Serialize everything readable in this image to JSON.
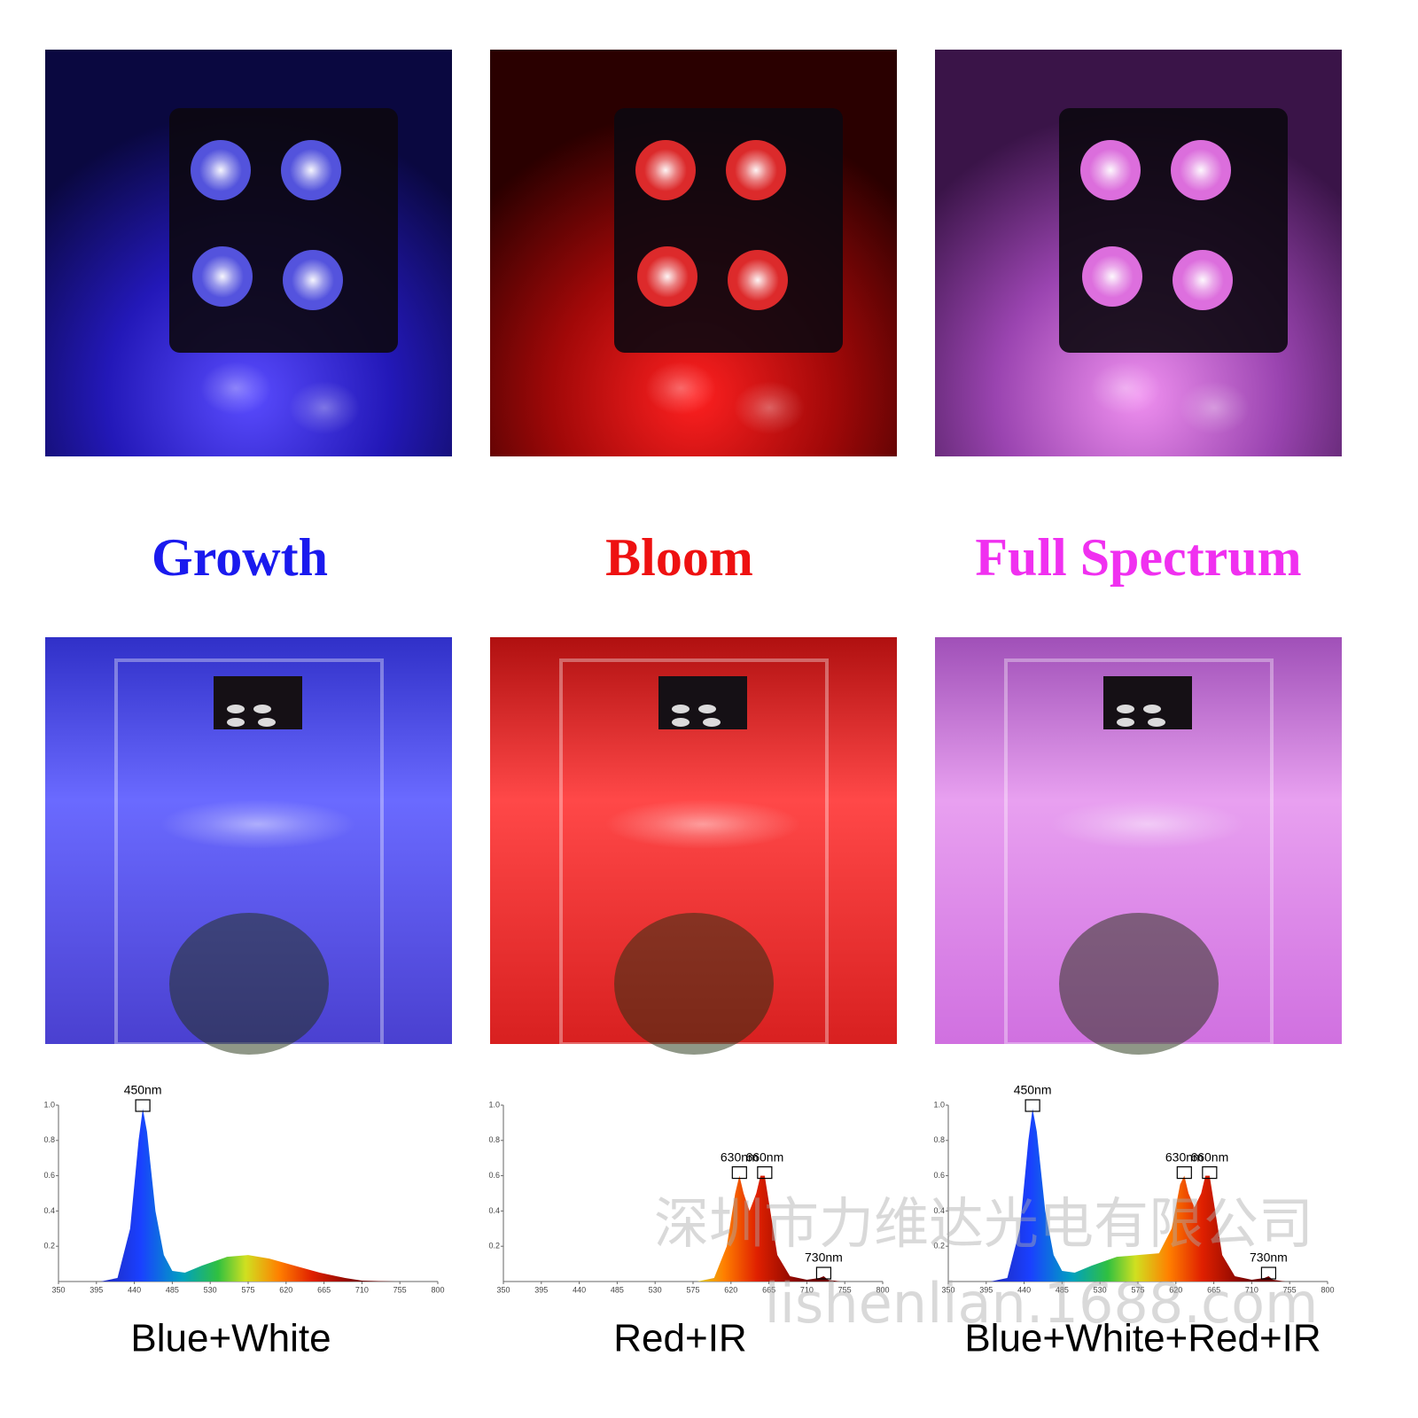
{
  "panels": [
    {
      "heading": "Growth",
      "heading_color": "#1a1aee",
      "caption": "Blue+White"
    },
    {
      "heading": "Bloom",
      "heading_color": "#ee1111",
      "caption": "Red+IR"
    },
    {
      "heading": "Full Spectrum",
      "heading_color": "#f030f0",
      "caption": "Blue+White+Red+IR"
    }
  ],
  "watermark": {
    "company": "深圳市力维达光电有限公司",
    "site": "lishenlian.1688.com"
  },
  "chart_data": [
    {
      "type": "area",
      "x": [
        350,
        400,
        420,
        435,
        445,
        450,
        455,
        465,
        475,
        485,
        500,
        520,
        550,
        575,
        600,
        630,
        660,
        690,
        710,
        750,
        800
      ],
      "values": [
        0,
        0,
        0.02,
        0.3,
        0.8,
        0.98,
        0.85,
        0.4,
        0.15,
        0.06,
        0.05,
        0.09,
        0.14,
        0.15,
        0.13,
        0.09,
        0.05,
        0.02,
        0.005,
        0,
        0
      ],
      "xlim": [
        350,
        800
      ],
      "xticks": [
        350,
        395,
        440,
        485,
        530,
        575,
        620,
        665,
        710,
        755,
        800
      ],
      "ylim": [
        0,
        1
      ],
      "yticks": [
        0.2,
        0.4,
        0.6,
        0.8,
        {
          "value": 1,
          "label": "1.0"
        }
      ],
      "annotations": [
        {
          "label": "450nm",
          "x": 450,
          "y": 0.98
        }
      ]
    },
    {
      "type": "area",
      "x": [
        350,
        580,
        600,
        615,
        625,
        630,
        635,
        642,
        650,
        655,
        660,
        665,
        675,
        690,
        710,
        725,
        730,
        735,
        750,
        800
      ],
      "values": [
        0,
        0,
        0.02,
        0.2,
        0.5,
        0.6,
        0.5,
        0.4,
        0.5,
        0.6,
        0.6,
        0.45,
        0.15,
        0.03,
        0.01,
        0.02,
        0.03,
        0.01,
        0,
        0
      ],
      "xlim": [
        350,
        800
      ],
      "xticks": [
        350,
        395,
        440,
        485,
        530,
        575,
        620,
        665,
        710,
        755,
        800
      ],
      "ylim": [
        0,
        1
      ],
      "yticks": [
        0.2,
        0.4,
        0.6,
        0.8,
        {
          "value": 1,
          "label": "1.0"
        }
      ],
      "annotations": [
        {
          "label": "630nm",
          "x": 630,
          "y": 0.6
        },
        {
          "label": "660nm",
          "x": 660,
          "y": 0.6
        },
        {
          "label": "730nm",
          "x": 730,
          "y": 0.03
        }
      ]
    },
    {
      "type": "area",
      "x": [
        350,
        400,
        420,
        435,
        445,
        450,
        455,
        465,
        475,
        485,
        500,
        520,
        550,
        575,
        600,
        615,
        625,
        630,
        635,
        642,
        650,
        655,
        660,
        665,
        675,
        690,
        710,
        725,
        730,
        735,
        750,
        800
      ],
      "values": [
        0,
        0,
        0.02,
        0.3,
        0.8,
        0.98,
        0.85,
        0.4,
        0.15,
        0.06,
        0.05,
        0.09,
        0.14,
        0.15,
        0.16,
        0.3,
        0.55,
        0.6,
        0.5,
        0.42,
        0.5,
        0.6,
        0.6,
        0.45,
        0.15,
        0.03,
        0.01,
        0.02,
        0.03,
        0.01,
        0,
        0
      ],
      "xlim": [
        350,
        800
      ],
      "xticks": [
        350,
        395,
        440,
        485,
        530,
        575,
        620,
        665,
        710,
        755,
        800
      ],
      "ylim": [
        0,
        1
      ],
      "yticks": [
        0.2,
        0.4,
        0.6,
        0.8,
        {
          "value": 1,
          "label": "1.0"
        }
      ],
      "annotations": [
        {
          "label": "450nm",
          "x": 450,
          "y": 0.98
        },
        {
          "label": "630nm",
          "x": 630,
          "y": 0.6
        },
        {
          "label": "660nm",
          "x": 660,
          "y": 0.6
        },
        {
          "label": "730nm",
          "x": 730,
          "y": 0.03
        }
      ]
    }
  ]
}
